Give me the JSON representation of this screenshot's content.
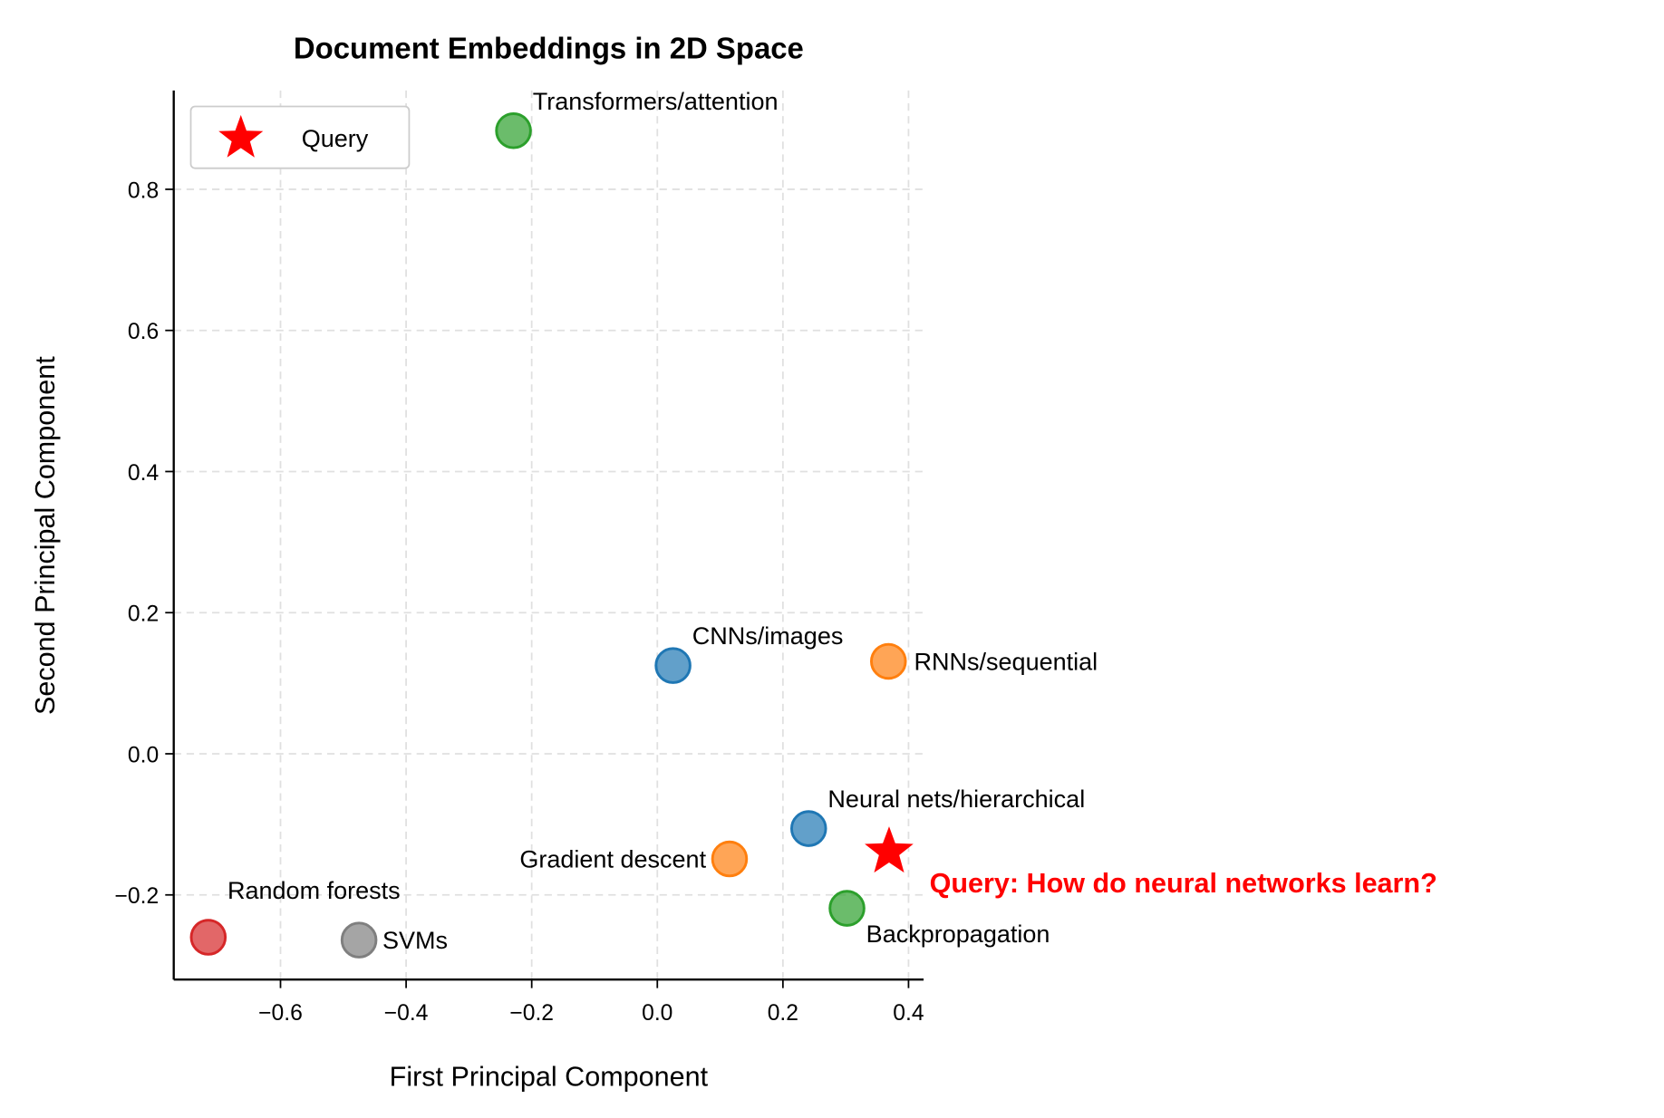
{
  "chart_data": {
    "type": "scatter",
    "title": "Document Embeddings in 2D Space",
    "xlabel": "First Principal Component",
    "ylabel": "Second Principal Component",
    "xlim": [
      -0.77,
      0.424
    ],
    "ylim": [
      -0.32,
      0.94
    ],
    "xticks": [
      -0.6,
      -0.4,
      -0.2,
      0.0,
      0.2,
      0.4
    ],
    "xtick_labels": [
      "−0.6",
      "−0.4",
      "−0.2",
      "0.0",
      "0.2",
      "0.4"
    ],
    "yticks": [
      -0.2,
      0.0,
      0.2,
      0.4,
      0.6,
      0.8
    ],
    "ytick_labels": [
      "−0.2",
      "0.0",
      "0.2",
      "0.4",
      "0.6",
      "0.8"
    ],
    "grid": true,
    "legend": {
      "placement": "top-left",
      "entries": [
        "Query"
      ]
    },
    "points": [
      {
        "label": "Transformers/attention",
        "x": -0.229,
        "y": 0.883,
        "color": "#2ca02c"
      },
      {
        "label": "CNNs/images",
        "x": 0.025,
        "y": 0.125,
        "color": "#1f77b4"
      },
      {
        "label": "RNNs/sequential",
        "x": 0.368,
        "y": 0.131,
        "color": "#ff7f0e"
      },
      {
        "label": "Neural nets/hierarchical",
        "x": 0.241,
        "y": -0.106,
        "color": "#1f77b4"
      },
      {
        "label": "Gradient descent",
        "x": 0.115,
        "y": -0.149,
        "color": "#ff7f0e"
      },
      {
        "label": "Backpropagation",
        "x": 0.302,
        "y": -0.219,
        "color": "#2ca02c"
      },
      {
        "label": "Random forests",
        "x": -0.715,
        "y": -0.26,
        "color": "#d62728"
      },
      {
        "label": "SVMs",
        "x": -0.475,
        "y": -0.264,
        "color": "#7f7f7f"
      }
    ],
    "query": {
      "label": "Query: How do neural networks learn?",
      "legend_name": "Query",
      "x": 0.369,
      "y": -0.139,
      "color": "#ff0000",
      "marker": "star"
    }
  }
}
